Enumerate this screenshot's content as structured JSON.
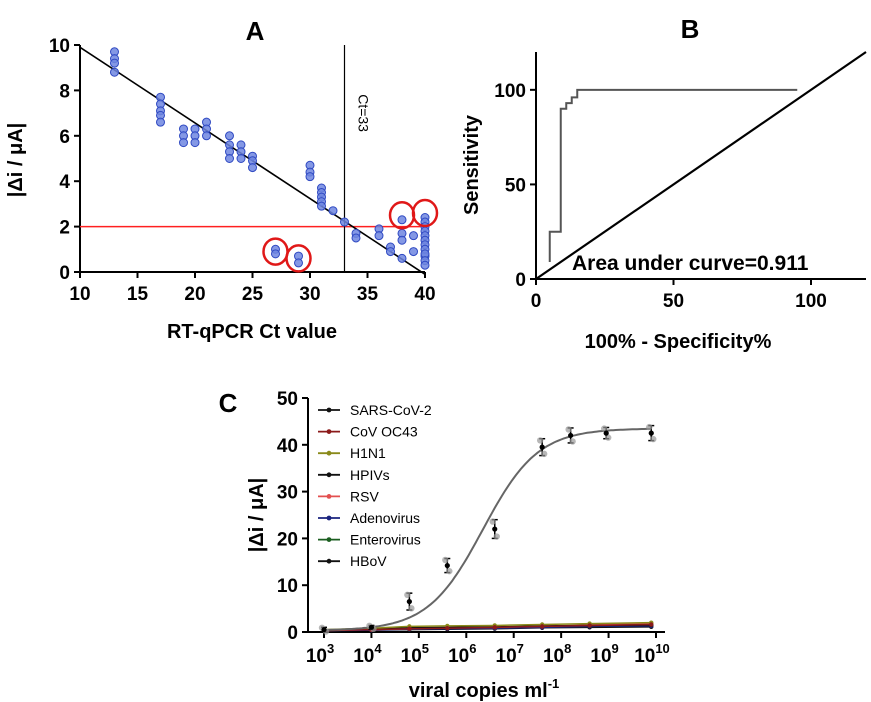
{
  "chart_data": [
    {
      "panel": "A",
      "type": "scatter",
      "xlabel": "RT-qPCR Ct value",
      "ylabel": "|Δi / μA|",
      "xlim": [
        10,
        40
      ],
      "ylim": [
        0,
        10
      ],
      "x_ticks": [
        "10",
        "15",
        "20",
        "25",
        "30",
        "35",
        "40"
      ],
      "y_ticks": [
        "0",
        "2",
        "4",
        "6",
        "8",
        "10"
      ],
      "fit_line": {
        "x": [
          10,
          40
        ],
        "y": [
          9.9,
          -0.1
        ]
      },
      "threshold_y": 2,
      "cutoff": {
        "x": 33,
        "label": "Ct=33"
      },
      "points": {
        "x": [
          13,
          13,
          13,
          13,
          17,
          17,
          17,
          17,
          17,
          19,
          19,
          19,
          20,
          20,
          20,
          21,
          21,
          21,
          23,
          23,
          23,
          23,
          24,
          24,
          24,
          25,
          25,
          25,
          27,
          27,
          29,
          29,
          30,
          30,
          30,
          31,
          31,
          31,
          31,
          31,
          32,
          33,
          34,
          34,
          36,
          36,
          37,
          37,
          38,
          38,
          38,
          38,
          39,
          39,
          40,
          40,
          40,
          40,
          40,
          40,
          40,
          40,
          40,
          40,
          40,
          40
        ],
        "y": [
          9.7,
          9.4,
          9.2,
          8.8,
          7.7,
          7.4,
          7.1,
          6.9,
          6.6,
          6.3,
          6.0,
          5.7,
          6.3,
          6.0,
          5.7,
          6.6,
          6.3,
          6.0,
          6.0,
          5.6,
          5.3,
          5.0,
          5.6,
          5.3,
          5.0,
          5.1,
          4.9,
          4.6,
          1.0,
          0.8,
          0.7,
          0.4,
          4.7,
          4.4,
          4.2,
          3.7,
          3.5,
          3.3,
          3.1,
          2.9,
          2.7,
          2.2,
          1.7,
          1.5,
          1.9,
          1.6,
          1.1,
          0.9,
          0.6,
          2.3,
          1.7,
          1.4,
          1.6,
          0.9,
          0.7,
          2.4,
          2.2,
          2.0,
          1.8,
          1.6,
          1.4,
          1.2,
          1.0,
          0.8,
          0.5,
          0.3
        ]
      },
      "highlighted_points": {
        "x": [
          27,
          29,
          38,
          40
        ],
        "y": [
          0.9,
          0.6,
          2.5,
          2.6
        ]
      }
    },
    {
      "panel": "B",
      "type": "line",
      "xlabel": "100% - Specificity%",
      "ylabel": "Sensitivity",
      "xlim": [
        0,
        120
      ],
      "ylim": [
        0,
        120
      ],
      "x_ticks": [
        "0",
        "50",
        "100"
      ],
      "y_ticks": [
        "0",
        "50",
        "100"
      ],
      "roc": {
        "x": [
          5,
          5,
          9,
          9,
          11,
          11,
          13,
          13,
          15,
          15,
          95
        ],
        "y": [
          9,
          25,
          25,
          90,
          90,
          93,
          93,
          96,
          96,
          100,
          100
        ]
      },
      "reference_line": {
        "x": [
          0,
          120
        ],
        "y": [
          0,
          120
        ]
      },
      "annotation": "Area under curve=0.911"
    },
    {
      "panel": "C",
      "type": "line",
      "xlabel": "viral copies ml",
      "xlabel_sup": "-1",
      "ylabel": "|Δi / μA|",
      "xscale": "log",
      "xlim": [
        3,
        10
      ],
      "ylim": [
        0,
        50
      ],
      "x_ticks": [
        {
          "base": "10",
          "exp": "3"
        },
        {
          "base": "10",
          "exp": "4"
        },
        {
          "base": "10",
          "exp": "5"
        },
        {
          "base": "10",
          "exp": "6"
        },
        {
          "base": "10",
          "exp": "7"
        },
        {
          "base": "10",
          "exp": "8"
        },
        {
          "base": "10",
          "exp": "9"
        },
        {
          "base": "10",
          "exp": "10"
        }
      ],
      "y_ticks": [
        "0",
        "10",
        "20",
        "30",
        "40",
        "50"
      ],
      "legend_placement": "top-left",
      "sars_fit": {
        "bottom": 0.3,
        "top": 43.5,
        "log_ec50": 6.35,
        "hill": 0.75
      },
      "series": [
        {
          "name": "SARS-CoV-2",
          "color": "#111111",
          "x": [
            3,
            4,
            4.8,
            5.6,
            6.6,
            7.6,
            8.2,
            8.95,
            9.9
          ],
          "y": [
            0.5,
            1.0,
            6.5,
            14.2,
            22.0,
            39.5,
            42.0,
            42.5,
            42.5
          ],
          "err": [
            0.5,
            0.4,
            1.8,
            1.5,
            2.0,
            1.8,
            1.6,
            1.2,
            1.6
          ]
        },
        {
          "name": "CoV OC43",
          "color": "#8b1a1a",
          "x": [
            3,
            4,
            4.8,
            5.6,
            6.6,
            7.6,
            8.6,
            9.9
          ],
          "y": [
            0.4,
            0.5,
            0.7,
            0.8,
            1.0,
            1.2,
            1.4,
            1.6
          ],
          "err": []
        },
        {
          "name": "H1N1",
          "color": "#8a8a1a",
          "x": [
            3,
            4,
            4.8,
            5.6,
            6.6,
            7.6,
            8.6,
            9.9
          ],
          "y": [
            0.5,
            0.8,
            1.2,
            1.3,
            1.4,
            1.6,
            1.8,
            2.0
          ],
          "err": []
        },
        {
          "name": "HPIVs",
          "color": "#111111",
          "x": [
            3,
            4,
            4.8,
            5.6,
            6.6,
            7.6,
            8.6,
            9.9
          ],
          "y": [
            0.4,
            0.6,
            0.9,
            1.0,
            1.1,
            1.3,
            1.4,
            1.5
          ],
          "err": []
        },
        {
          "name": "RSV",
          "color": "#e35050",
          "x": [
            3,
            4,
            4.8,
            5.6,
            6.6,
            7.6,
            8.6,
            9.9
          ],
          "y": [
            0.3,
            0.5,
            0.7,
            0.9,
            1.0,
            1.2,
            1.5,
            1.8
          ],
          "err": []
        },
        {
          "name": "Adenovirus",
          "color": "#1a237e",
          "x": [
            3,
            4,
            4.8,
            5.6,
            6.6,
            7.6,
            8.6,
            9.9
          ],
          "y": [
            0.3,
            0.4,
            0.6,
            0.7,
            0.8,
            1.0,
            1.2,
            1.3
          ],
          "err": []
        },
        {
          "name": "Enterovirus",
          "color": "#1b5e20",
          "x": [
            3,
            4,
            4.8,
            5.6,
            6.6,
            7.6,
            8.6,
            9.9
          ],
          "y": [
            0.3,
            0.5,
            0.6,
            0.8,
            0.9,
            1.1,
            1.2,
            1.4
          ],
          "err": []
        },
        {
          "name": "HBoV",
          "color": "#111111",
          "x": [
            3,
            4,
            4.8,
            5.6,
            6.6,
            7.6,
            8.6,
            9.9
          ],
          "y": [
            0.3,
            0.4,
            0.5,
            0.6,
            0.7,
            0.9,
            1.0,
            1.1
          ],
          "err": []
        }
      ]
    }
  ],
  "panels": {
    "a": {
      "letter": "A"
    },
    "b": {
      "letter": "B"
    },
    "c": {
      "letter": "C"
    }
  },
  "colors": {
    "scatter_fill": "#6f86e0",
    "scatter_stroke": "#2f49c2",
    "threshold": "#ff2020",
    "highlight_circle": "#e01818",
    "roc_line": "#555555",
    "fit_curve": "#666666"
  }
}
